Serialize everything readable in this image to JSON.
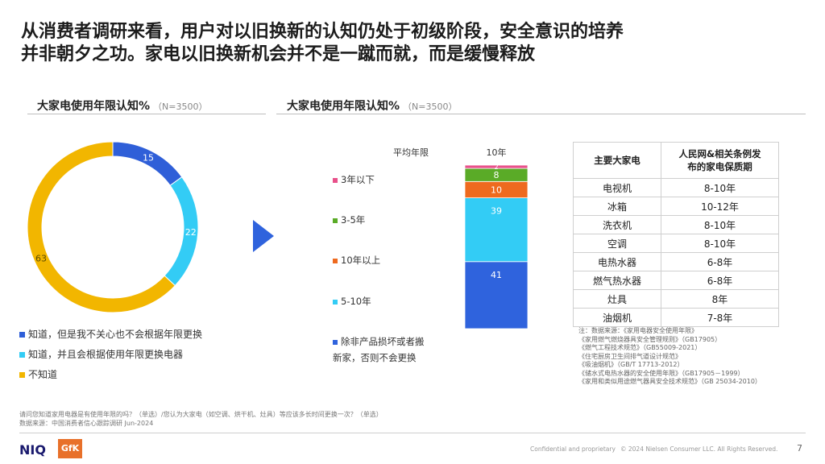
{
  "title_line1": "从消费者调研来看，用户对以旧换新的认知仍处于初级阶段，安全意识的培养",
  "title_line2": "并非朝夕之功。家电以旧换新机会并不是一蹴而就，而是缓慢释放",
  "left_section": {
    "heading": "大家电使用年限认知%",
    "sample": "（N=3500）"
  },
  "right_section": {
    "heading": "大家电使用年限认知%",
    "sample": "（N=3500）"
  },
  "chart_data": [
    {
      "type": "pie",
      "title": "大家电使用年限认知%",
      "categories": [
        "知道，但是我不关心也不会根据年限更换",
        "知道，并且会根据使用年限更换电器",
        "不知道"
      ],
      "values": [
        15,
        22,
        63
      ],
      "colors": [
        "#2f5fd8",
        "#33ccf5",
        "#f2b600"
      ],
      "legend_position": "bottom"
    },
    {
      "type": "bar",
      "title": "大家电使用年限认知%",
      "categories": [
        "10年"
      ],
      "category_header": "平均年限",
      "stacked": true,
      "series": [
        {
          "name": "除非产品损坏或者搬新家，否则不会更换",
          "values": [
            41
          ],
          "color": "#2f63dd"
        },
        {
          "name": "5-10年",
          "values": [
            39
          ],
          "color": "#33ccf5"
        },
        {
          "name": "10年以上",
          "values": [
            10
          ],
          "color": "#ee6a1f"
        },
        {
          "name": "3-5年",
          "values": [
            8
          ],
          "color": "#5aab27"
        },
        {
          "name": "3年以下",
          "values": [
            2
          ],
          "color": "#e8508a"
        }
      ],
      "ylim": [
        0,
        100
      ],
      "legend_position": "left"
    }
  ],
  "legend_left": [
    {
      "label": "知道，但是我不关心也不会根据年限更换",
      "color": "#2f5fd8"
    },
    {
      "label": "知道，并且会根据使用年限更换电器",
      "color": "#33ccf5"
    },
    {
      "label": "不知道",
      "color": "#f2b600"
    }
  ],
  "legend_mid": [
    {
      "label": "3年以下",
      "color": "#e8508a"
    },
    {
      "label": "3-5年",
      "color": "#5aab27"
    },
    {
      "label": "10年以上",
      "color": "#ee6a1f"
    },
    {
      "label": "5-10年",
      "color": "#33ccf5"
    },
    {
      "label": "除非产品损坏或者搬新家，否则不会更换",
      "line1": "除非产品损坏或者搬",
      "line2": "新家，否则不会更换",
      "color": "#2f63dd"
    }
  ],
  "table": {
    "header_col1": "主要大家电",
    "header_col2_line1": "人民网&相关条例发",
    "header_col2_line2": "布的家电保质期",
    "rows": [
      [
        "电视机",
        "8-10年"
      ],
      [
        "冰箱",
        "10-12年"
      ],
      [
        "洗衣机",
        "8-10年"
      ],
      [
        "空调",
        "8-10年"
      ],
      [
        "电热水器",
        "6-8年"
      ],
      [
        "燃气热水器",
        "6-8年"
      ],
      [
        "灶具",
        "8年"
      ],
      [
        "油烟机",
        "7-8年"
      ]
    ]
  },
  "notes": [
    "注：数据来源：《家用电器安全使用年限》",
    "《家用燃气燃烧器具安全管理规则》（GB17905）",
    "《燃气工程技术规范》（GB55009-2021）",
    "《住宅厨房卫生间排气道设计规范》",
    "《吸油烟机》（GB/T 17713-2012）",
    "《储水式电热水器的安全使用年限》（GB17905－1999）",
    "《家用和类似用途燃气器具安全技术规范》（GB 25034-2010）"
  ],
  "footnote_line1": "请问您知道家用电器是有使用年限的吗？（单选）/您认为大家电（如空调、烘干机、灶具）等应该多长时间更换一次？（单选）",
  "footnote_line2": "数据来源：中国消费者信心跟踪调研 Jun-2024",
  "footer": {
    "logo_niq": "NIQ",
    "logo_gfk": "GfK",
    "confidential": "Confidential and proprietary",
    "copyright": "© 2024 Nielsen Consumer LLC. All Rights Reserved.",
    "page_number": "7"
  },
  "arrow_color": "#2f63dd"
}
